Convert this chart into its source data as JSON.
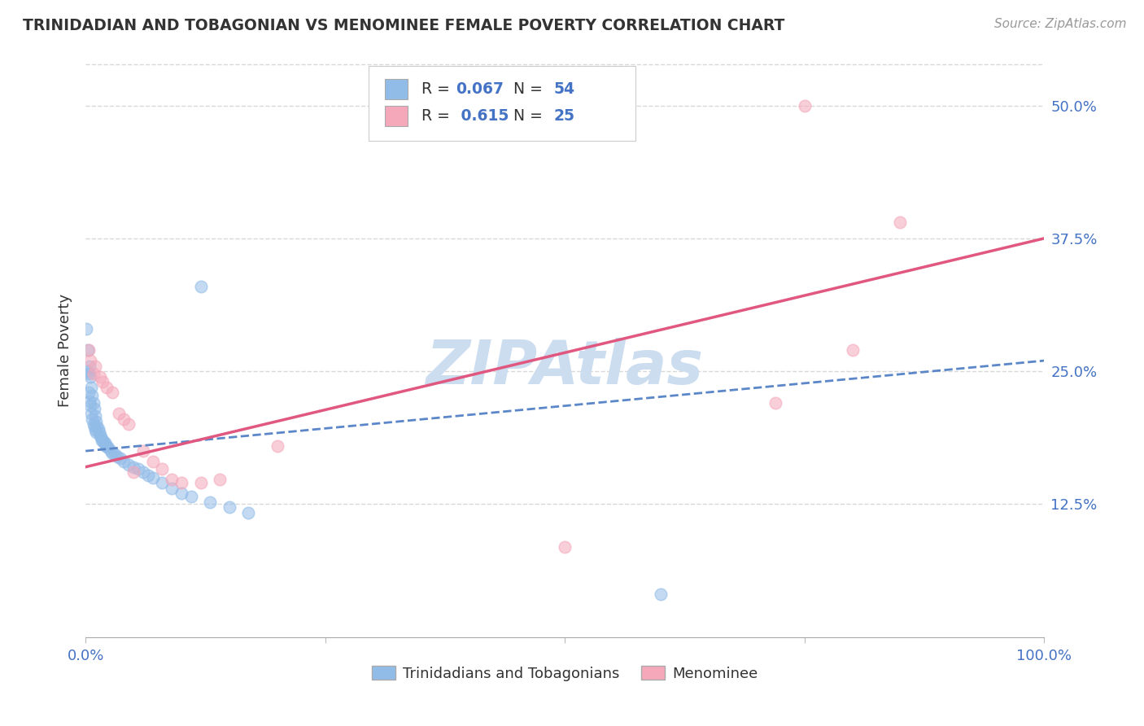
{
  "title": "TRINIDADIAN AND TOBAGONIAN VS MENOMINEE FEMALE POVERTY CORRELATION CHART",
  "source": "Source: ZipAtlas.com",
  "ylabel": "Female Poverty",
  "xlim": [
    0,
    1.0
  ],
  "ylim": [
    0,
    0.54
  ],
  "xtick_positions": [
    0,
    0.25,
    0.5,
    0.75,
    1.0
  ],
  "xticklabels": [
    "0.0%",
    "",
    "",
    "",
    "100.0%"
  ],
  "ytick_positions": [
    0.125,
    0.25,
    0.375,
    0.5
  ],
  "ytick_labels": [
    "12.5%",
    "25.0%",
    "37.5%",
    "50.0%"
  ],
  "r1": "0.067",
  "n1": "54",
  "r2": "0.615",
  "n2": "25",
  "blue_color": "#92bce8",
  "pink_color": "#f4a8ba",
  "trend_blue_color": "#5b86c8",
  "trend_pink_color": "#e05880",
  "tick_color": "#4472c4",
  "label_color": "#333333",
  "grid_color": "#d8d8d8",
  "watermark_color": "#ccddf0",
  "background_color": "#ffffff",
  "legend1_label": "Trinidadians and Tobagonians",
  "legend2_label": "Menominee",
  "blue_trend_x": [
    0.0,
    1.0
  ],
  "blue_trend_y": [
    0.175,
    0.26
  ],
  "pink_trend_x": [
    0.0,
    1.0
  ],
  "pink_trend_y": [
    0.16,
    0.375
  ],
  "blue_x": [
    0.001,
    0.002,
    0.002,
    0.003,
    0.003,
    0.004,
    0.004,
    0.005,
    0.005,
    0.006,
    0.006,
    0.007,
    0.007,
    0.008,
    0.008,
    0.009,
    0.009,
    0.01,
    0.01,
    0.011,
    0.011,
    0.012,
    0.013,
    0.014,
    0.015,
    0.016,
    0.017,
    0.018,
    0.019,
    0.02,
    0.021,
    0.022,
    0.024,
    0.026,
    0.028,
    0.03,
    0.033,
    0.036,
    0.04,
    0.045,
    0.05,
    0.055,
    0.06,
    0.065,
    0.07,
    0.08,
    0.09,
    0.1,
    0.11,
    0.12,
    0.13,
    0.15,
    0.17,
    0.6
  ],
  "blue_y": [
    0.29,
    0.27,
    0.25,
    0.248,
    0.23,
    0.255,
    0.222,
    0.245,
    0.218,
    0.235,
    0.21,
    0.227,
    0.205,
    0.22,
    0.2,
    0.215,
    0.198,
    0.208,
    0.195,
    0.203,
    0.193,
    0.198,
    0.196,
    0.193,
    0.19,
    0.188,
    0.185,
    0.185,
    0.183,
    0.183,
    0.18,
    0.18,
    0.178,
    0.175,
    0.173,
    0.172,
    0.17,
    0.168,
    0.165,
    0.162,
    0.16,
    0.158,
    0.155,
    0.152,
    0.15,
    0.145,
    0.14,
    0.135,
    0.132,
    0.33,
    0.127,
    0.122,
    0.117,
    0.04
  ],
  "pink_x": [
    0.003,
    0.005,
    0.008,
    0.01,
    0.015,
    0.018,
    0.022,
    0.028,
    0.035,
    0.04,
    0.045,
    0.05,
    0.06,
    0.07,
    0.08,
    0.09,
    0.1,
    0.12,
    0.14,
    0.2,
    0.5,
    0.72,
    0.75,
    0.8,
    0.85
  ],
  "pink_y": [
    0.27,
    0.26,
    0.248,
    0.255,
    0.245,
    0.24,
    0.235,
    0.23,
    0.21,
    0.205,
    0.2,
    0.155,
    0.175,
    0.165,
    0.158,
    0.148,
    0.145,
    0.145,
    0.148,
    0.18,
    0.085,
    0.22,
    0.5,
    0.27,
    0.39
  ]
}
